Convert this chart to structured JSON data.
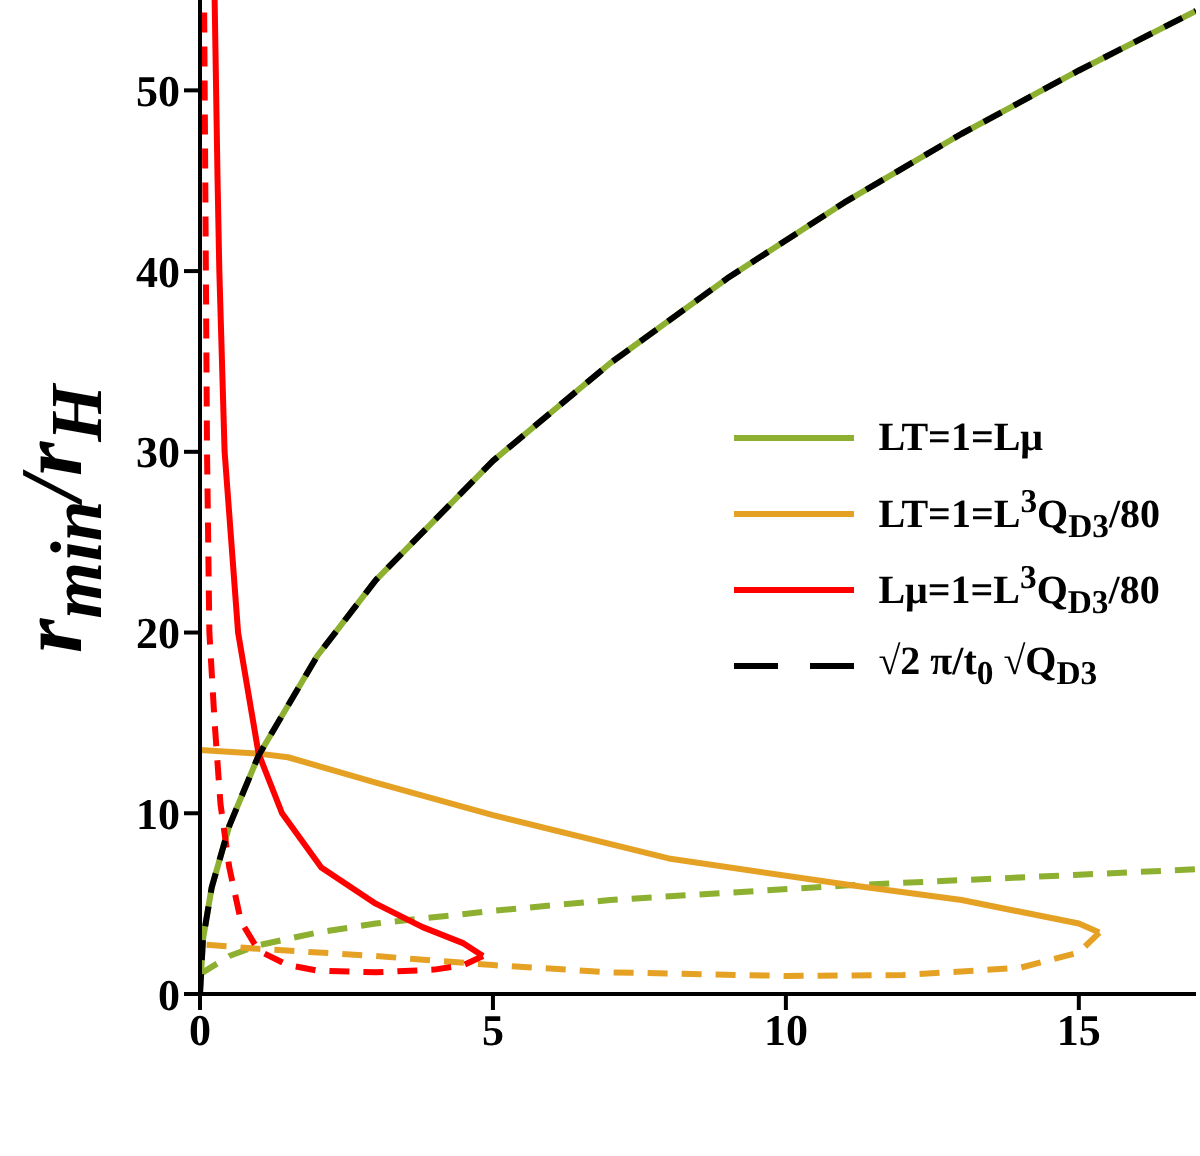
{
  "chart_data": {
    "type": "line",
    "ylabel": "r$_{min}$/r$_{H}$",
    "xlim": [
      0,
      17
    ],
    "ylim": [
      0,
      55
    ],
    "xticks": [
      0,
      5,
      10,
      15
    ],
    "yticks": [
      0,
      10,
      20,
      30,
      40,
      50
    ],
    "grid": false,
    "legend": "right",
    "marker": "none",
    "series": [
      {
        "name": "LT=1=Lμ",
        "color": "#8db030",
        "line_style": "solid",
        "x": [
          0,
          0.05,
          0.2,
          0.5,
          1,
          2,
          3,
          5,
          7,
          9,
          11,
          13,
          15,
          17
        ],
        "values": [
          0,
          3,
          5.9,
          9.3,
          13.2,
          18.7,
          22.9,
          29.5,
          34.9,
          39.6,
          43.8,
          47.6,
          51.1,
          54.4
        ]
      },
      {
        "color": "#8db030",
        "line_style": "dashed",
        "x": [
          0,
          0.5,
          1,
          2,
          3,
          5,
          7,
          9,
          11,
          13,
          15,
          17
        ],
        "values": [
          1.1,
          2.1,
          2.7,
          3.4,
          3.9,
          4.6,
          5.2,
          5.6,
          6,
          6.3,
          6.6,
          6.9
        ]
      },
      {
        "name": "LT=1=L$^{3}$Q$_{D3}$/80",
        "color": "#e5a124",
        "line_style": "solid",
        "x": [
          0,
          1,
          1.5,
          3,
          5,
          8,
          11.15,
          13,
          15,
          15.35
        ],
        "values": [
          13.5,
          13.3,
          13.1,
          11.7,
          9.9,
          7.5,
          6,
          5.2,
          3.9,
          3.4
        ]
      },
      {
        "color": "#e5a124",
        "line_style": "dashed",
        "x": [
          15.35,
          15,
          14,
          12,
          10,
          7,
          5,
          3,
          1,
          0
        ],
        "values": [
          3.4,
          2.3,
          1.45,
          1.05,
          1,
          1.2,
          1.6,
          2.1,
          2.5,
          2.75
        ]
      },
      {
        "name": "Lμ=1=L$^{3}$Q$_{D3}$/80",
        "color": "#ff0000",
        "line_style": "solid",
        "x": [
          0.25,
          0.3,
          0.33,
          0.42,
          0.65,
          1,
          1.4,
          2.07,
          3,
          3.8,
          4.5,
          4.83
        ],
        "values": [
          55,
          45,
          40,
          30,
          20,
          13.3,
          10,
          7,
          5,
          3.7,
          2.8,
          2.1
        ]
      },
      {
        "color": "#ff0000",
        "line_style": "dashed",
        "x": [
          4.83,
          4.5,
          4,
          3,
          2,
          1.5,
          1,
          0.7,
          0.5,
          0.35,
          0.25,
          0.16,
          0.12,
          0.1,
          0.07
        ],
        "values": [
          2.1,
          1.6,
          1.35,
          1.2,
          1.3,
          1.6,
          2.4,
          4,
          7,
          10.5,
          15,
          20,
          30,
          40,
          55
        ]
      },
      {
        "name": "√2 π/t$_{0}$ √Q$_{D3}$",
        "color": "#000000",
        "line_style": "dashed",
        "x": [
          0,
          0.05,
          0.2,
          0.5,
          1,
          2,
          3,
          5,
          7,
          9,
          11,
          13,
          15,
          17
        ],
        "values": [
          0,
          3,
          5.9,
          9.3,
          13.2,
          18.7,
          22.9,
          29.5,
          34.9,
          39.6,
          43.8,
          47.6,
          51.1,
          54.4
        ]
      }
    ]
  }
}
